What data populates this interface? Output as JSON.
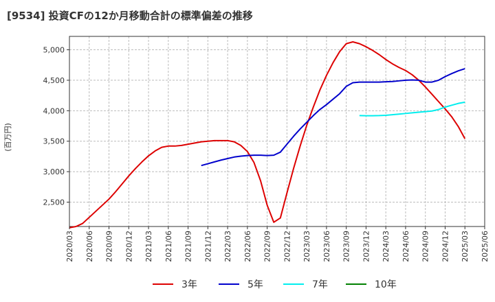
{
  "chart_data": {
    "type": "line",
    "title": "[9534]  投資CFの12か月移動合計の標準偏差の推移",
    "ylabel": "(百万円)",
    "xlabel": "",
    "ylim": [
      2100,
      5220
    ],
    "yticks": [
      2500,
      3000,
      3500,
      4000,
      4500,
      5000
    ],
    "ytick_labels": [
      "2,500",
      "3,000",
      "3,500",
      "4,000",
      "4,500",
      "5,000"
    ],
    "xticks": [
      "2020/03",
      "2020/06",
      "2020/09",
      "2020/12",
      "2021/03",
      "2021/06",
      "2021/09",
      "2021/12",
      "2022/03",
      "2022/06",
      "2022/09",
      "2022/12",
      "2023/03",
      "2023/06",
      "2023/09",
      "2023/12",
      "2024/03",
      "2024/06",
      "2024/09",
      "2024/12",
      "2025/03",
      "2025/06"
    ],
    "grid": true,
    "legend_position": "bottom",
    "series": [
      {
        "name": "3年",
        "color": "#dd0000",
        "points": [
          [
            "2020/03",
            2080
          ],
          [
            "2020/04",
            2100
          ],
          [
            "2020/05",
            2150
          ],
          [
            "2020/06",
            2250
          ],
          [
            "2020/07",
            2350
          ],
          [
            "2020/08",
            2450
          ],
          [
            "2020/09",
            2550
          ],
          [
            "2020/10",
            2670
          ],
          [
            "2020/11",
            2800
          ],
          [
            "2020/12",
            2930
          ],
          [
            "2021/01",
            3050
          ],
          [
            "2021/02",
            3160
          ],
          [
            "2021/03",
            3260
          ],
          [
            "2021/04",
            3340
          ],
          [
            "2021/05",
            3400
          ],
          [
            "2021/06",
            3420
          ],
          [
            "2021/07",
            3420
          ],
          [
            "2021/08",
            3430
          ],
          [
            "2021/09",
            3450
          ],
          [
            "2021/10",
            3470
          ],
          [
            "2021/11",
            3490
          ],
          [
            "2021/12",
            3500
          ],
          [
            "2022/01",
            3510
          ],
          [
            "2022/02",
            3510
          ],
          [
            "2022/03",
            3510
          ],
          [
            "2022/04",
            3490
          ],
          [
            "2022/05",
            3430
          ],
          [
            "2022/06",
            3330
          ],
          [
            "2022/07",
            3150
          ],
          [
            "2022/08",
            2850
          ],
          [
            "2022/09",
            2450
          ],
          [
            "2022/10",
            2170
          ],
          [
            "2022/11",
            2240
          ],
          [
            "2022/12",
            2650
          ],
          [
            "2023/01",
            3050
          ],
          [
            "2023/02",
            3420
          ],
          [
            "2023/03",
            3760
          ],
          [
            "2023/04",
            4060
          ],
          [
            "2023/05",
            4340
          ],
          [
            "2023/06",
            4580
          ],
          [
            "2023/07",
            4790
          ],
          [
            "2023/08",
            4970
          ],
          [
            "2023/09",
            5100
          ],
          [
            "2023/10",
            5130
          ],
          [
            "2023/11",
            5100
          ],
          [
            "2023/12",
            5050
          ],
          [
            "2024/01",
            4990
          ],
          [
            "2024/02",
            4920
          ],
          [
            "2024/03",
            4840
          ],
          [
            "2024/04",
            4770
          ],
          [
            "2024/05",
            4710
          ],
          [
            "2024/06",
            4660
          ],
          [
            "2024/07",
            4590
          ],
          [
            "2024/08",
            4500
          ],
          [
            "2024/09",
            4390
          ],
          [
            "2024/10",
            4270
          ],
          [
            "2024/11",
            4150
          ],
          [
            "2024/12",
            4030
          ],
          [
            "2025/01",
            3900
          ],
          [
            "2025/02",
            3740
          ],
          [
            "2025/03",
            3540
          ]
        ]
      },
      {
        "name": "5年",
        "color": "#0000cc",
        "points": [
          [
            "2021/11",
            3100
          ],
          [
            "2021/12",
            3130
          ],
          [
            "2022/01",
            3160
          ],
          [
            "2022/02",
            3190
          ],
          [
            "2022/03",
            3215
          ],
          [
            "2022/04",
            3240
          ],
          [
            "2022/05",
            3255
          ],
          [
            "2022/06",
            3265
          ],
          [
            "2022/07",
            3270
          ],
          [
            "2022/08",
            3270
          ],
          [
            "2022/09",
            3265
          ],
          [
            "2022/10",
            3270
          ],
          [
            "2022/11",
            3320
          ],
          [
            "2022/12",
            3450
          ],
          [
            "2023/01",
            3580
          ],
          [
            "2023/02",
            3700
          ],
          [
            "2023/03",
            3810
          ],
          [
            "2023/04",
            3920
          ],
          [
            "2023/05",
            4020
          ],
          [
            "2023/06",
            4100
          ],
          [
            "2023/07",
            4190
          ],
          [
            "2023/08",
            4280
          ],
          [
            "2023/09",
            4400
          ],
          [
            "2023/10",
            4460
          ],
          [
            "2023/11",
            4470
          ],
          [
            "2023/12",
            4470
          ],
          [
            "2024/01",
            4470
          ],
          [
            "2024/02",
            4470
          ],
          [
            "2024/03",
            4475
          ],
          [
            "2024/04",
            4480
          ],
          [
            "2024/05",
            4490
          ],
          [
            "2024/06",
            4500
          ],
          [
            "2024/07",
            4505
          ],
          [
            "2024/08",
            4500
          ],
          [
            "2024/09",
            4470
          ],
          [
            "2024/10",
            4470
          ],
          [
            "2024/11",
            4500
          ],
          [
            "2024/12",
            4560
          ],
          [
            "2025/01",
            4610
          ],
          [
            "2025/02",
            4655
          ],
          [
            "2025/03",
            4690
          ]
        ]
      },
      {
        "name": "7年",
        "color": "#00eeee",
        "points": [
          [
            "2023/11",
            3920
          ],
          [
            "2023/12",
            3918
          ],
          [
            "2024/01",
            3918
          ],
          [
            "2024/02",
            3920
          ],
          [
            "2024/03",
            3925
          ],
          [
            "2024/04",
            3935
          ],
          [
            "2024/05",
            3945
          ],
          [
            "2024/06",
            3955
          ],
          [
            "2024/07",
            3965
          ],
          [
            "2024/08",
            3975
          ],
          [
            "2024/09",
            3985
          ],
          [
            "2024/10",
            3995
          ],
          [
            "2024/11",
            4020
          ],
          [
            "2024/12",
            4060
          ],
          [
            "2025/01",
            4090
          ],
          [
            "2025/02",
            4120
          ],
          [
            "2025/03",
            4140
          ]
        ]
      },
      {
        "name": "10年",
        "color": "#008000",
        "points": []
      }
    ]
  }
}
